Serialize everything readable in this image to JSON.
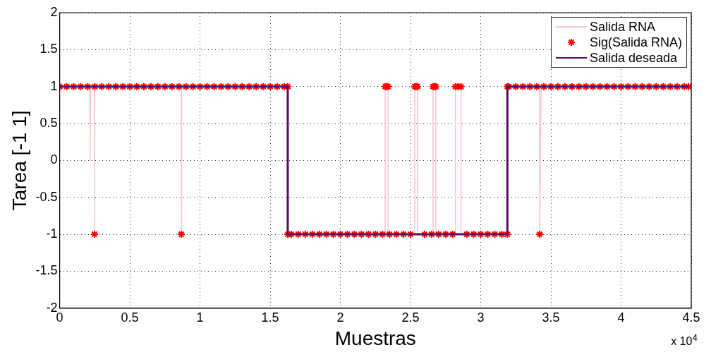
{
  "chart_data": {
    "type": "line",
    "xlabel": "Muestras",
    "ylabel": "Tarea [-1 1]",
    "xlim": [
      0,
      4.5
    ],
    "xticks": [
      0,
      0.5,
      1,
      1.5,
      2,
      2.5,
      3,
      3.5,
      4,
      4.5
    ],
    "ylim": [
      -2,
      2
    ],
    "yticks": [
      -2,
      -1.5,
      -1,
      -0.5,
      0,
      0.5,
      1,
      1.5,
      2
    ],
    "grid": true,
    "legend": "top right",
    "annotations": [
      "x 10$^{4}$"
    ],
    "series": [
      {
        "name": "Salida RNA",
        "marker": "none",
        "color": "#f7c6ce",
        "x": [
          0,
          0.217,
          0.217,
          0.22,
          0.248,
          0.248,
          0.25,
          0.867,
          0.867,
          0.87,
          1.625,
          1.625,
          2.32,
          2.32,
          2.34,
          2.34,
          2.53,
          2.53,
          2.55,
          2.55,
          2.66,
          2.66,
          2.68,
          2.68,
          2.82,
          2.82,
          2.86,
          2.86,
          3.19,
          3.19,
          3.42,
          3.42,
          3.43,
          4.48
        ],
        "values": [
          1,
          1,
          0,
          1,
          1,
          -1,
          1,
          1,
          -1,
          1,
          1,
          -1,
          -1,
          1,
          1,
          -1,
          -1,
          1,
          1,
          -1,
          -1,
          1,
          1,
          -1,
          -1,
          1,
          1,
          -1,
          -1,
          1,
          1,
          -1,
          1,
          1
        ]
      },
      {
        "name": "Sig(Salida RNA)",
        "type": "scatter",
        "marker": "cross",
        "color": "#ff0000",
        "x": [
          0,
          0.05,
          0.1,
          0.15,
          0.2,
          0.248,
          0.25,
          0.3,
          0.35,
          0.4,
          0.45,
          0.5,
          0.55,
          0.6,
          0.65,
          0.7,
          0.75,
          0.8,
          0.85,
          0.867,
          0.9,
          0.95,
          1,
          1.05,
          1.1,
          1.15,
          1.2,
          1.25,
          1.3,
          1.35,
          1.4,
          1.45,
          1.5,
          1.55,
          1.6,
          1.625,
          1.625,
          1.65,
          1.7,
          1.75,
          1.8,
          1.85,
          1.9,
          1.95,
          2,
          2.05,
          2.1,
          2.15,
          2.2,
          2.25,
          2.3,
          2.32,
          2.33,
          2.34,
          2.35,
          2.4,
          2.45,
          2.5,
          2.53,
          2.54,
          2.55,
          2.6,
          2.65,
          2.66,
          2.67,
          2.68,
          2.7,
          2.75,
          2.8,
          2.82,
          2.84,
          2.86,
          2.9,
          2.95,
          3,
          3.05,
          3.1,
          3.15,
          3.19,
          3.19,
          3.2,
          3.25,
          3.3,
          3.35,
          3.4,
          3.42,
          3.45,
          3.5,
          3.55,
          3.6,
          3.65,
          3.7,
          3.75,
          3.8,
          3.85,
          3.9,
          3.95,
          4,
          4.05,
          4.1,
          4.15,
          4.2,
          4.25,
          4.3,
          4.35,
          4.4,
          4.45,
          4.48
        ],
        "values": [
          1,
          1,
          1,
          1,
          1,
          -1,
          1,
          1,
          1,
          1,
          1,
          1,
          1,
          1,
          1,
          1,
          1,
          1,
          1,
          -1,
          1,
          1,
          1,
          1,
          1,
          1,
          1,
          1,
          1,
          1,
          1,
          1,
          1,
          1,
          1,
          1,
          -1,
          -1,
          -1,
          -1,
          -1,
          -1,
          -1,
          -1,
          -1,
          -1,
          -1,
          -1,
          -1,
          -1,
          -1,
          1,
          1,
          1,
          -1,
          -1,
          -1,
          -1,
          1,
          1,
          1,
          -1,
          -1,
          1,
          1,
          1,
          -1,
          -1,
          -1,
          1,
          1,
          1,
          -1,
          -1,
          -1,
          -1,
          -1,
          -1,
          -1,
          1,
          1,
          1,
          1,
          1,
          1,
          -1,
          1,
          1,
          1,
          1,
          1,
          1,
          1,
          1,
          1,
          1,
          1,
          1,
          1,
          1,
          1,
          1,
          1,
          1,
          1,
          1,
          1,
          1
        ]
      },
      {
        "name": "Salida deseada",
        "marker": "none",
        "color": "#5b0b5f",
        "x": [
          0,
          1.625,
          1.625,
          3.19,
          3.19,
          4.48
        ],
        "values": [
          1,
          1,
          -1,
          -1,
          1,
          1
        ]
      }
    ]
  }
}
